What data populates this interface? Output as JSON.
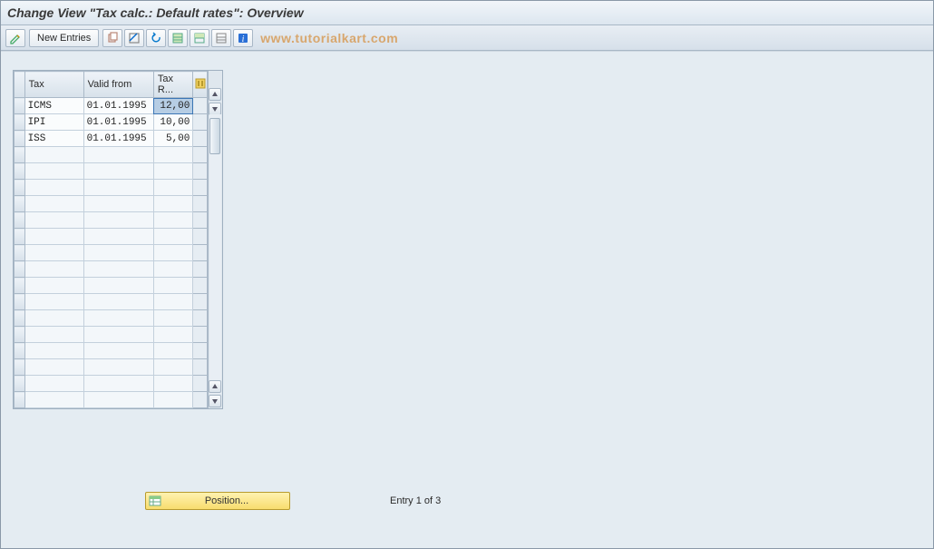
{
  "title": "Change View \"Tax calc.: Default rates\": Overview",
  "toolbar": {
    "new_entries_label": "New Entries"
  },
  "watermark": "www.tutorialkart.com",
  "table": {
    "columns": {
      "tax": "Tax",
      "valid_from": "Valid from",
      "tax_rate": "Tax R..."
    },
    "rows": [
      {
        "tax": "ICMS",
        "valid_from": "01.01.1995",
        "rate": "12,00",
        "selected": true
      },
      {
        "tax": "IPI",
        "valid_from": "01.01.1995",
        "rate": "10,00",
        "selected": false
      },
      {
        "tax": "ISS",
        "valid_from": "01.01.1995",
        "rate": "5,00",
        "selected": false
      }
    ],
    "empty_rows": 16
  },
  "footer": {
    "position_label": "Position...",
    "entry_text": "Entry 1 of 3"
  },
  "colors": {
    "titlebar_from": "#f2f6fa",
    "titlebar_to": "#dce6ef",
    "workarea_bg": "#e4ecf2",
    "header_from": "#eef3f8",
    "header_to": "#d7e1ea",
    "cell_bg": "#fafcfd",
    "selected_bg": "#b6cde4",
    "position_btn_from": "#fff2b0",
    "position_btn_to": "#f8dd6e",
    "watermark_color": "#d8a060"
  }
}
